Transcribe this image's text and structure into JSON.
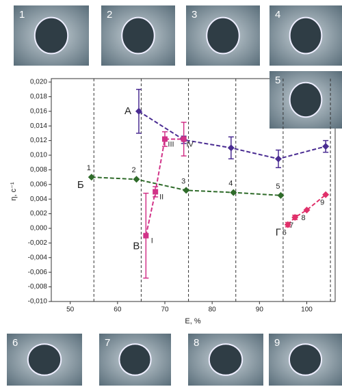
{
  "chart_data": {
    "type": "scatter",
    "x_label": "E, %",
    "y_label": "η, с⁻¹",
    "xlim": [
      46,
      106
    ],
    "xticks": [
      50,
      60,
      70,
      80,
      90,
      100
    ],
    "ylim": [
      -0.01,
      0.02
    ],
    "yticks": [
      {
        "value": -0.01,
        "label": "-0,010"
      },
      {
        "value": -0.008,
        "label": "-0,008"
      },
      {
        "value": -0.006,
        "label": "-0,006"
      },
      {
        "value": -0.004,
        "label": "-0,004"
      },
      {
        "value": -0.002,
        "label": "-0,002"
      },
      {
        "value": 0,
        "label": "0,000"
      },
      {
        "value": 0.002,
        "label": "0,002"
      },
      {
        "value": 0.004,
        "label": "0,004"
      },
      {
        "value": 0.006,
        "label": "0,006"
      },
      {
        "value": 0.008,
        "label": "0,008"
      },
      {
        "value": 0.01,
        "label": "0,010"
      },
      {
        "value": 0.012,
        "label": "0,012"
      },
      {
        "value": 0.014,
        "label": "0,014"
      },
      {
        "value": 0.016,
        "label": "0,016"
      },
      {
        "value": 0.018,
        "label": "0,018"
      },
      {
        "value": 0.02,
        "label": "0,020"
      }
    ],
    "reference_lines": [
      55,
      65,
      75,
      85,
      95,
      105
    ],
    "series": [
      {
        "name": "А",
        "color": "#4a2c92",
        "x": [
          64.5,
          74,
          84,
          94,
          104
        ],
        "values": [
          0.016,
          0.0121,
          0.011,
          0.0095,
          0.0112
        ],
        "errors": [
          0.003,
          0.0005,
          0.0015,
          0.0012,
          0.0008
        ],
        "point_labels": [
          null,
          null,
          null,
          null,
          null
        ]
      },
      {
        "name": "Б",
        "color": "#2f6b2a",
        "x": [
          54.5,
          64,
          74.5,
          84.5,
          94.5
        ],
        "values": [
          0.007,
          0.0067,
          0.0052,
          0.0049,
          0.0045
        ],
        "errors": [
          0,
          0,
          0,
          0,
          0
        ],
        "point_labels": [
          "1",
          "2",
          "3",
          "4",
          "5"
        ]
      },
      {
        "name": "В",
        "color": "#d13388",
        "x": [
          66,
          68,
          70,
          74
        ],
        "values": [
          -0.001,
          0.005,
          0.0122,
          0.0122
        ],
        "errors": [
          0.0058,
          0.0007,
          0.001,
          0.0023
        ],
        "point_labels": [
          "I",
          "II",
          "III",
          "IV"
        ]
      },
      {
        "name": "Г",
        "color": "#e0306a",
        "x": [
          96,
          97.5,
          100,
          104
        ],
        "values": [
          0.0005,
          0.0015,
          0.0025,
          0.0046
        ],
        "errors": [
          0.0003,
          0.0003,
          0,
          0
        ],
        "point_labels": [
          "6",
          "7",
          "8",
          "9"
        ]
      }
    ],
    "photo_labels": [
      "1",
      "2",
      "3",
      "4",
      "5",
      "6",
      "7",
      "8",
      "9"
    ]
  }
}
